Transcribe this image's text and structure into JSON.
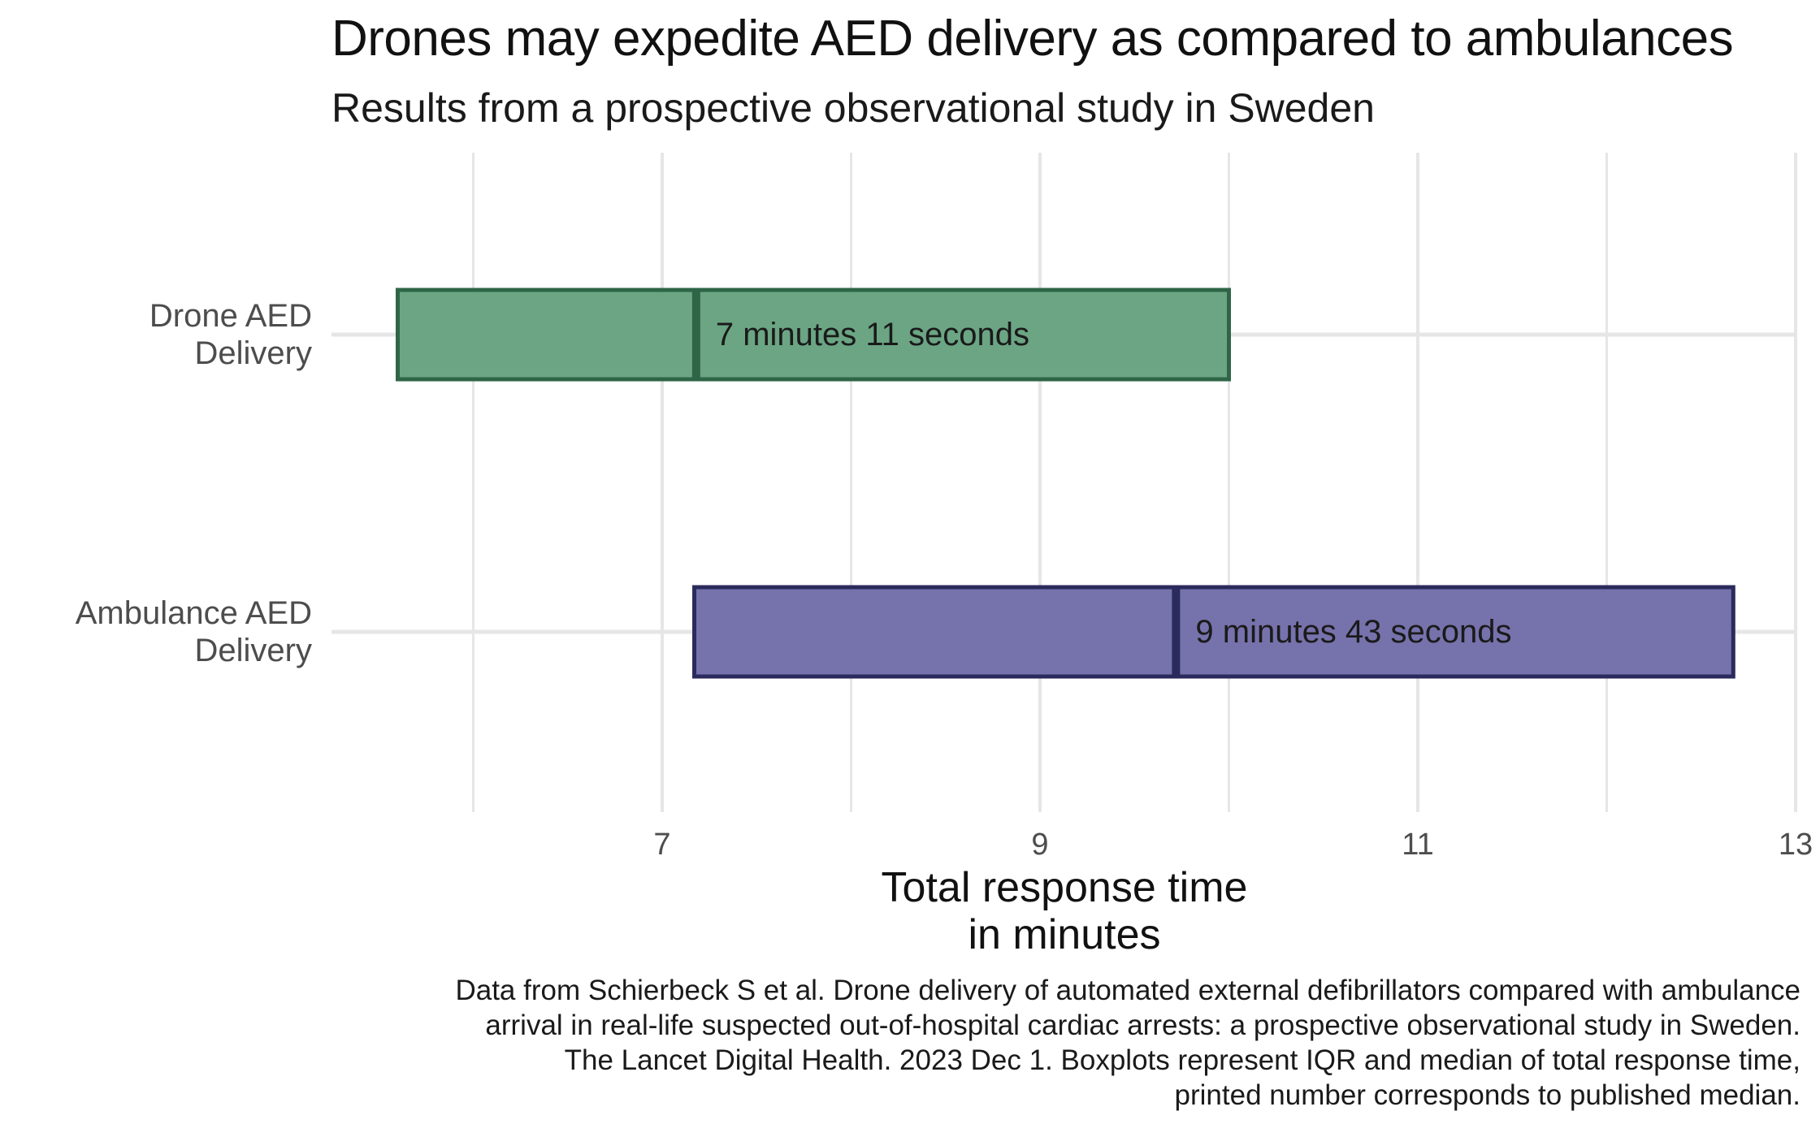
{
  "chart_data": {
    "type": "boxplot",
    "title": "Drones may expedite AED delivery as compared to ambulances",
    "subtitle": "Results from a prospective observational study in Sweden",
    "xlabel": [
      "Total response time",
      "in minutes"
    ],
    "ylabel": "",
    "xlim": [
      5.2,
      13
    ],
    "x_ticks": [
      7,
      9,
      11,
      13
    ],
    "x_minor_grid": [
      6,
      8,
      10,
      12
    ],
    "grid": true,
    "legend": "none",
    "categories": [
      [
        "Drone AED",
        "Delivery"
      ],
      [
        "Ambulance AED",
        "Delivery"
      ]
    ],
    "boxes": [
      {
        "category_index": 0,
        "q1": 5.6,
        "median": 7.18,
        "q3": 10.0,
        "label": "7 minutes 11 seconds",
        "fill": "#6BA584",
        "stroke": "#2F6547"
      },
      {
        "category_index": 1,
        "q1": 7.17,
        "median": 9.72,
        "q3": 12.67,
        "label": "9 minutes 43 seconds",
        "fill": "#7672AC",
        "stroke": "#2B2A5C"
      }
    ],
    "caption": [
      "Data from Schierbeck S et al. Drone delivery of automated external defibrillators compared with ambulance",
      "arrival in real-life suspected out-of-hospital cardiac arrests: a prospective observational study in Sweden.",
      "The Lancet Digital Health. 2023 Dec 1. Boxplots represent IQR and median of total response time,",
      "printed number corresponds to published median."
    ]
  },
  "colors": {
    "grid": "#E6E6E6",
    "axis_text": "#4D4D4D",
    "label_text": "#1a1a1a"
  }
}
